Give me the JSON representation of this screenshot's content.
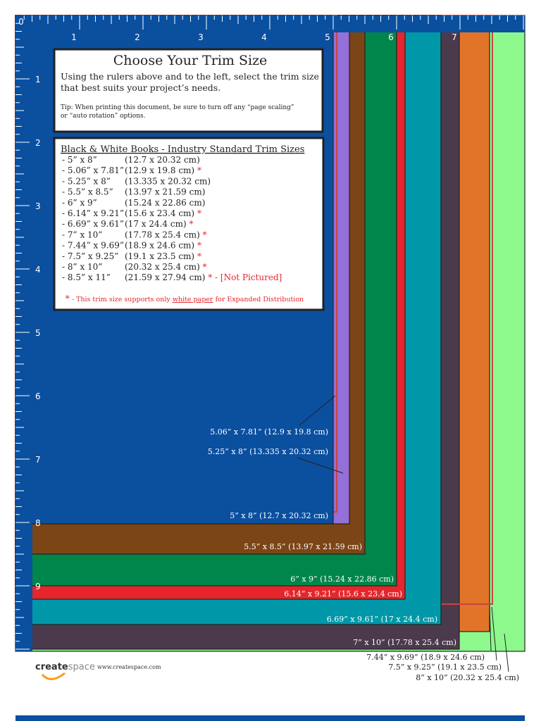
{
  "rulers": {
    "top": [
      "0",
      "1",
      "2",
      "3",
      "4",
      "5",
      "6",
      "7"
    ],
    "left": [
      "1",
      "2",
      "3",
      "4",
      "5",
      "6",
      "7",
      "8",
      "9"
    ]
  },
  "intro": {
    "title": "Choose Your Trim Size",
    "text": [
      "Using the rulers above and to the left, select the trim size",
      "that best suits your project’s needs."
    ],
    "tip": [
      "Tip:  When printing this document, be sure to turn off any “page scaling”",
      "or “auto rotation” options."
    ]
  },
  "list": {
    "heading": "Black & White Books - Industry Standard Trim Sizes",
    "items": [
      {
        "size": "- 5” x 8”",
        "metric": "(12.7 x 20.32 cm)"
      },
      {
        "size": "- 5.06” x 7.81”",
        "metric": "(12.9 x 19.8 cm)",
        "mark": "*"
      },
      {
        "size": "- 5.25” x 8”",
        "metric": "(13.335 x 20.32 cm)"
      },
      {
        "size": "- 5.5” x 8.5”",
        "metric": "(13.97 x 21.59 cm)"
      },
      {
        "size": "- 6” x 9”",
        "metric": "(15.24 x 22.86 cm)"
      },
      {
        "size": "- 6.14” x 9.21”",
        "metric": "(15.6 x 23.4 cm)",
        "mark": "*"
      },
      {
        "size": "- 6.69” x 9.61”",
        "metric": "(17 x 24.4 cm)",
        "mark": "*"
      },
      {
        "size": "- 7” x 10”",
        "metric": "(17.78 x 25.4 cm)",
        "mark": "*"
      },
      {
        "size": "- 7.44” x 9.69”",
        "metric": "(18.9 x 24.6 cm)",
        "mark": "*"
      },
      {
        "size": "- 7.5” x 9.25”",
        "metric": "(19.1 x 23.5 cm)",
        "mark": "*"
      },
      {
        "size": "- 8” x 10”",
        "metric": "(20.32 x 25.4 cm)",
        "mark": "*"
      },
      {
        "size": "- 8.5” x 11”",
        "metric": "(21.59 x 27.94 cm)",
        "mark": "*",
        "note": " - [Not Pictured]"
      }
    ],
    "footnote": {
      "mark": "*",
      "before": " - This trim size supports only ",
      "link": "white paper",
      "after": " for Expanded Distribution"
    }
  },
  "labels": [
    "5.06” x 7.81” (12.9 x 19.8 cm)",
    "5.25” x 8” (13.335 x 20.32 cm)",
    "5” x 8” (12.7 x 20.32 cm)",
    "5.5” x 8.5” (13.97 x 21.59 cm)",
    "6” x 9” (15.24 x 22.86 cm)",
    "6.14” x 9.21” (15.6 x 23.4 cm)",
    "6.69” x 9.61” (17 x 24.4 cm)",
    "7” x 10” (17.78 x 25.4 cm)",
    "7.44” x 9.69” (18.9 x 24.6 cm)",
    "7.5” x 9.25” (19.1 x 23.5 cm)",
    "8” x 10” (20.32 x 25.4 cm)"
  ],
  "footer": {
    "logo_bold": "create",
    "logo_light": "space",
    "url": "www.createspace.com"
  }
}
